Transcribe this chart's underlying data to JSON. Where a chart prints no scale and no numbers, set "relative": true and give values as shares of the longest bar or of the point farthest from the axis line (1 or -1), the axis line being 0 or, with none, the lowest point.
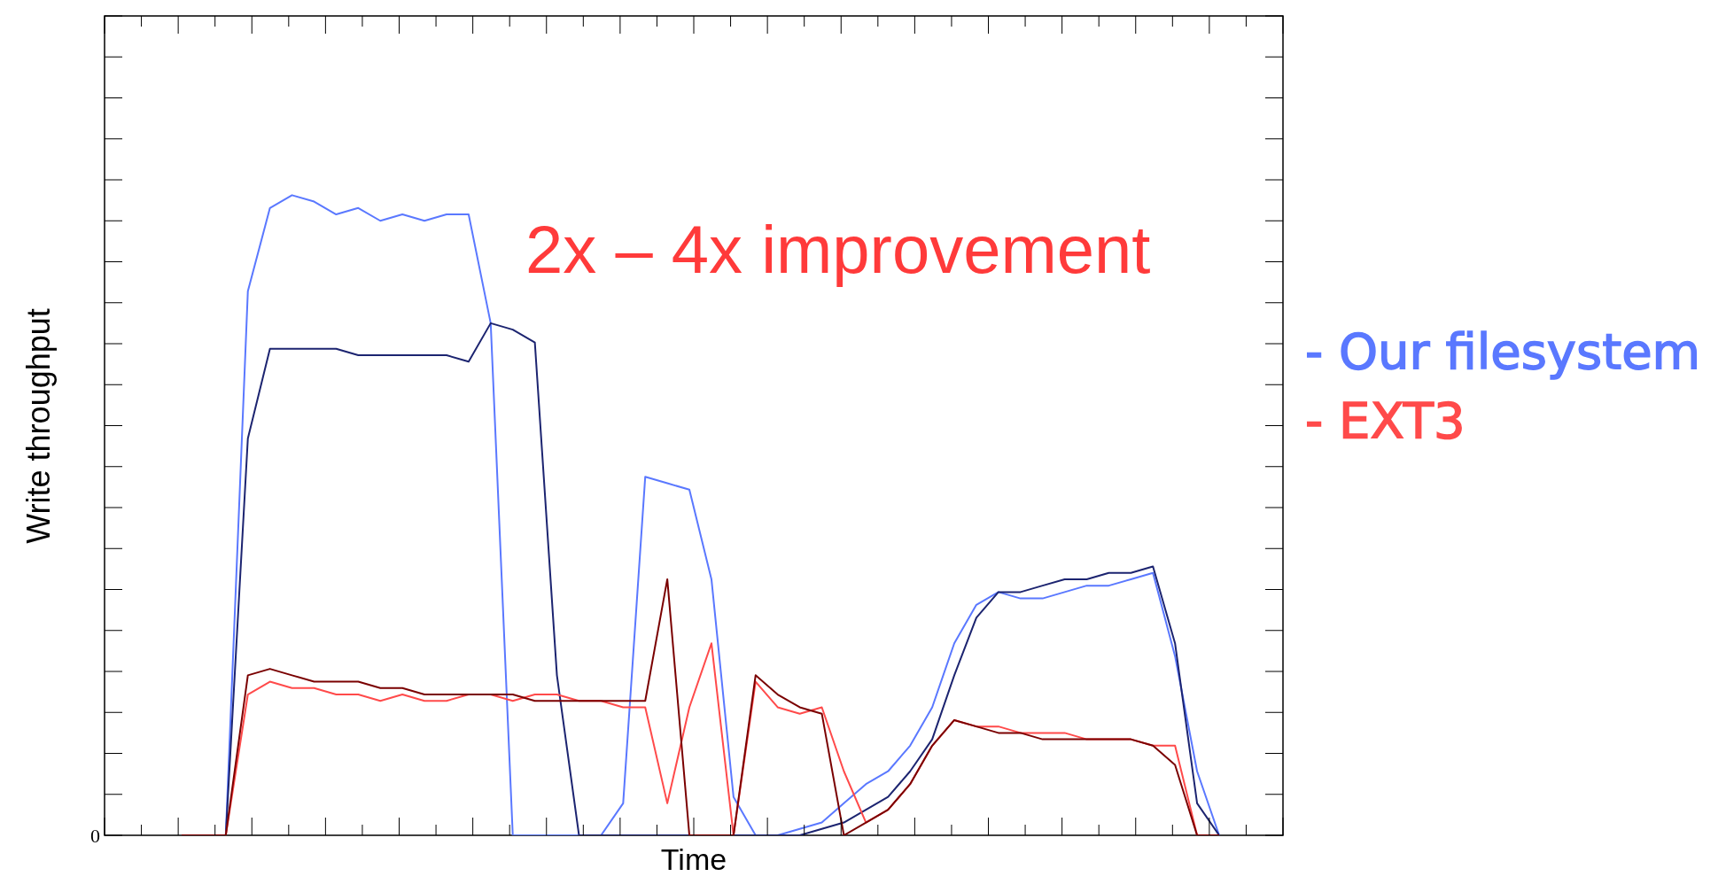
{
  "chart_data": {
    "type": "line",
    "relative": true,
    "xlabel": "Time",
    "ylabel": "Write throughput",
    "annotations": [
      "2x – 4x improvement",
      "0"
    ],
    "categories": [
      null,
      null,
      null,
      null,
      null,
      null,
      null,
      null,
      null,
      null,
      null,
      null,
      null,
      null,
      null,
      null,
      null,
      null,
      null,
      null,
      null,
      null,
      null,
      null,
      null,
      null,
      null,
      null,
      null,
      null,
      null,
      null,
      null,
      null,
      null,
      null,
      null,
      null,
      null,
      null,
      null,
      null,
      null,
      null,
      null,
      null,
      null,
      null
    ],
    "legend": "right",
    "marker": "none",
    "line_style": "solid",
    "grid": false,
    "series": [
      {
        "name": "- Our filesystem",
        "color": "#5a78ff",
        "values": [
          0,
          0,
          0,
          0.85,
          0.98,
          1,
          0.99,
          0.97,
          0.98,
          0.96,
          0.97,
          0.96,
          0.97,
          0.97,
          0.8,
          0,
          0,
          0,
          0,
          0,
          0.05,
          0.56,
          0.55,
          0.54,
          0.4,
          0.06,
          0,
          0,
          0.01,
          0.02,
          0.05,
          0.08,
          0.1,
          0.14,
          0.2,
          0.3,
          0.36,
          0.38,
          0.37,
          0.37,
          0.38,
          0.39,
          0.39,
          0.4,
          0.41,
          0.28,
          0.1,
          0
        ]
      },
      {
        "color": "#1c2470",
        "values": [
          0,
          0,
          0,
          0.62,
          0.76,
          0.76,
          0.76,
          0.76,
          0.75,
          0.75,
          0.75,
          0.75,
          0.75,
          0.74,
          0.8,
          0.79,
          0.77,
          0.25,
          0,
          0,
          0,
          0,
          0,
          0,
          0,
          0,
          0,
          0,
          0,
          0.01,
          0.02,
          0.04,
          0.06,
          0.1,
          0.15,
          0.25,
          0.34,
          0.38,
          0.38,
          0.39,
          0.4,
          0.4,
          0.41,
          0.41,
          0.42,
          0.3,
          0.05,
          0
        ]
      },
      {
        "name": "- EXT3",
        "color": "#ff4a4a",
        "values": [
          0,
          0,
          0,
          0.22,
          0.24,
          0.23,
          0.23,
          0.22,
          0.22,
          0.21,
          0.22,
          0.21,
          0.21,
          0.22,
          0.22,
          0.21,
          0.22,
          0.22,
          0.21,
          0.21,
          0.2,
          0.2,
          0.05,
          0.2,
          0.3,
          0,
          0.24,
          0.2,
          0.19,
          0.2,
          0.1,
          0.02,
          0.04,
          0.08,
          0.14,
          0.18,
          0.17,
          0.17,
          0.16,
          0.16,
          0.16,
          0.15,
          0.15,
          0.15,
          0.14,
          0.14,
          0,
          0
        ]
      },
      {
        "color": "#7a0000",
        "values": [
          0,
          0,
          0,
          0.25,
          0.26,
          0.25,
          0.24,
          0.24,
          0.24,
          0.23,
          0.23,
          0.22,
          0.22,
          0.22,
          0.22,
          0.22,
          0.21,
          0.21,
          0.21,
          0.21,
          0.21,
          0.21,
          0.4,
          0,
          0,
          0,
          0.25,
          0.22,
          0.2,
          0.19,
          0,
          0.02,
          0.04,
          0.08,
          0.14,
          0.18,
          0.17,
          0.16,
          0.16,
          0.15,
          0.15,
          0.15,
          0.15,
          0.15,
          0.14,
          0.11,
          0,
          0
        ]
      }
    ]
  }
}
